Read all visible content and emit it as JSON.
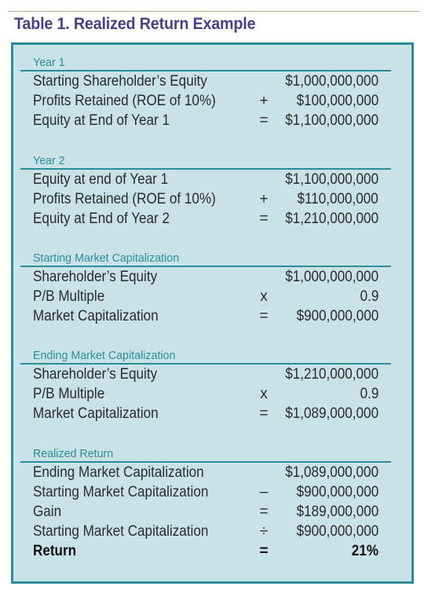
{
  "title": "Table 1. Realized Return Example",
  "colors": {
    "title": "#4a3f88",
    "accent": "#2a8e99",
    "panel": "#c8e2e7"
  },
  "sections": [
    {
      "title": "Year 1",
      "rows": [
        {
          "label": "Starting Shareholder’s Equity",
          "op": "",
          "value": "$1,000,000,000"
        },
        {
          "label": "Profits Retained (ROE of 10%)",
          "op": "+",
          "value": "$100,000,000"
        },
        {
          "label": "Equity at End of Year 1",
          "op": "=",
          "value": "$1,100,000,000"
        }
      ]
    },
    {
      "title": "Year 2",
      "rows": [
        {
          "label": "Equity at end of Year 1",
          "op": "",
          "value": "$1,100,000,000"
        },
        {
          "label": "Profits Retained (ROE of 10%)",
          "op": "+",
          "value": "$110,000,000"
        },
        {
          "label": "Equity at End of Year 2",
          "op": "=",
          "value": "$1,210,000,000"
        }
      ]
    },
    {
      "title": "Starting Market Capitalization",
      "rows": [
        {
          "label": "Shareholder’s Equity",
          "op": "",
          "value": "$1,000,000,000"
        },
        {
          "label": "P/B Multiple",
          "op": "x",
          "value": "0.9"
        },
        {
          "label": "Market Capitalization",
          "op": "=",
          "value": "$900,000,000"
        }
      ]
    },
    {
      "title": "Ending Market Capitalization",
      "rows": [
        {
          "label": "Shareholder’s Equity",
          "op": "",
          "value": "$1,210,000,000"
        },
        {
          "label": "P/B Multiple",
          "op": "x",
          "value": "0.9"
        },
        {
          "label": "Market Capitalization",
          "op": "=",
          "value": "$1,089,000,000"
        }
      ]
    },
    {
      "title": "Realized Return",
      "rows": [
        {
          "label": "Ending Market Capitalization",
          "op": "",
          "value": "$1,089,000,000"
        },
        {
          "label": "Starting Market Capitalization",
          "op": "–",
          "value": "$900,000,000"
        },
        {
          "label": "Gain",
          "op": "=",
          "value": "$189,000,000"
        },
        {
          "label": "Starting Market Capitalization",
          "op": "÷",
          "value": "$900,000,000"
        },
        {
          "label": "Return",
          "op": "=",
          "value": "21%"
        }
      ]
    }
  ]
}
